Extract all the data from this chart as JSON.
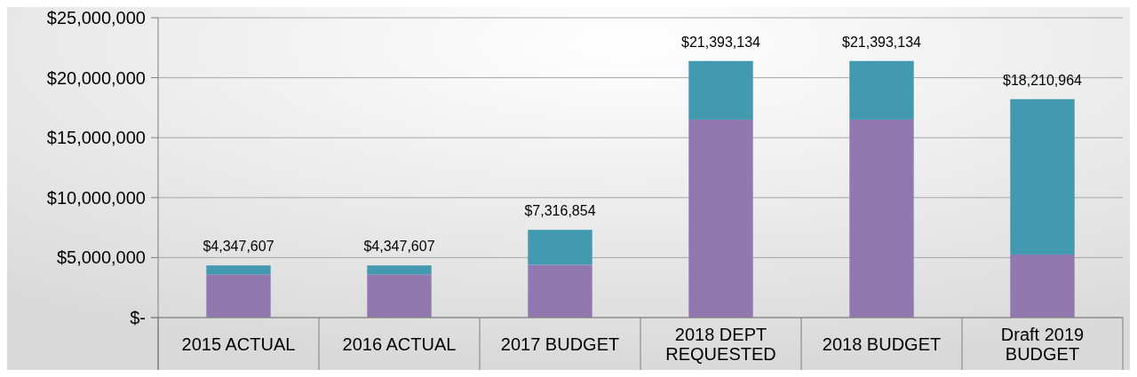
{
  "chart_data": {
    "type": "bar",
    "stacked": true,
    "categories": [
      "2015 ACTUAL",
      "2016 ACTUAL",
      "2017 BUDGET",
      "2018 DEPT REQUESTED",
      "2018 BUDGET",
      "Draft 2019 BUDGET"
    ],
    "series": [
      {
        "color": "#9179b0",
        "values": [
          3600000,
          3600000,
          4400000,
          16500000,
          16500000,
          5250000
        ]
      },
      {
        "color": "#4399b0",
        "values": [
          747607,
          747607,
          2916854,
          4893134,
          4893134,
          12960964
        ]
      }
    ],
    "ylim": [
      0,
      25000000
    ],
    "yticks": [
      {
        "value": 0,
        "label": "$-"
      },
      {
        "value": 5000000,
        "label": "$5,000,000"
      },
      {
        "value": 10000000,
        "label": "$10,000,000"
      },
      {
        "value": 15000000,
        "label": "$15,000,000"
      },
      {
        "value": 20000000,
        "label": "$20,000,000"
      },
      {
        "value": 25000000,
        "label": "$25,000,000"
      }
    ],
    "grid": "y",
    "totals": [
      "$4,347,607",
      "$4,347,607",
      "$7,316,854",
      "$21,393,134",
      "$21,393,134",
      "$18,210,964"
    ]
  }
}
